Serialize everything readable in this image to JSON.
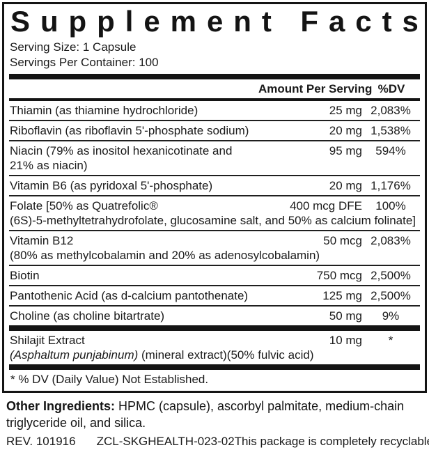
{
  "colors": {
    "ink": "#141414",
    "background": "#ffffff"
  },
  "panel": {
    "title": "Supplement Facts",
    "serving_size": "Serving Size: 1 Capsule",
    "servings_per_container": "Servings Per Container: 100",
    "header": {
      "amount": "Amount Per Serving",
      "dv": "%DV"
    },
    "rows": [
      {
        "name": "Thiamin (as thiamine hydrochloride)",
        "amount": "25 mg",
        "dv": "2,083%"
      },
      {
        "name": "Riboflavin (as riboflavin 5'-phosphate sodium)",
        "amount": "20 mg",
        "dv": "1,538%"
      },
      {
        "name": "Niacin (79% as inositol hexanicotinate and 21% as niacin)",
        "amount": "95 mg",
        "dv": "594%"
      },
      {
        "name": "Vitamin B6 (as pyridoxal 5'-phosphate)",
        "amount": "20 mg",
        "dv": "1,176%"
      },
      {
        "name": "Folate [50% as Quatrefolic®",
        "amount": "400 mcg DFE",
        "dv": "100%",
        "sub": "(6S)-5-methyltetrahydrofolate, glucosamine salt, and 50% as calcium folinate]"
      },
      {
        "name": "Vitamin B12",
        "amount": "50 mcg",
        "dv": "2,083%",
        "sub": "(80% as methylcobalamin and 20% as adenosylcobalamin)"
      },
      {
        "name": "Biotin",
        "amount": "750 mcg",
        "dv": "2,500%"
      },
      {
        "name": "Pantothenic Acid (as d-calcium pantothenate)",
        "amount": "125 mg",
        "dv": "2,500%"
      },
      {
        "name": "Choline (as choline bitartrate)",
        "amount": "50 mg",
        "dv": "9%"
      }
    ],
    "extract_row": {
      "name": "Shilajit Extract",
      "amount": "10 mg",
      "dv": "*",
      "sub_italic": "(Asphaltum punjabinum)",
      "sub_rest": " (mineral extract)(50% fulvic acid)"
    },
    "footnote": "* % DV (Daily Value) Not Established."
  },
  "other_ingredients": {
    "label": "Other Ingredients:",
    "text": " HPMC (capsule), ascorbyl palmitate, medium-chain triglyceride oil, and silica."
  },
  "footer": {
    "rev": "REV. 101916",
    "code": "ZCL-SKGHEALTH-023-02",
    "recycle_text": "This package is completely recyclable",
    "recycle_icon": "♻"
  }
}
